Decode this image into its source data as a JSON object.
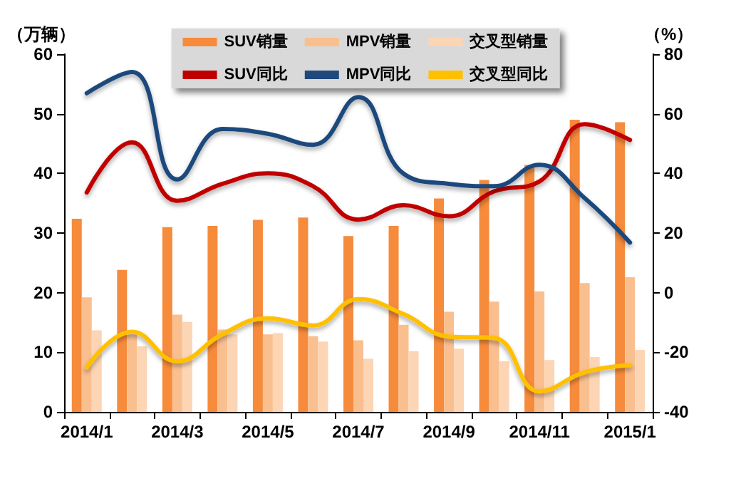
{
  "chart_data": {
    "type": "bar",
    "ylabel": "（万辆）",
    "y2label": "（%）",
    "categories": [
      "2014/1",
      null,
      "2014/3",
      null,
      "2014/5",
      null,
      "2014/7",
      null,
      "2014/9",
      null,
      "2014/11",
      null,
      "2015/1"
    ],
    "series": [
      {
        "name": "SUV销量",
        "color": "#f68b3c",
        "values": [
          32.4,
          23.8,
          31.0,
          31.2,
          32.2,
          32.6,
          29.5,
          31.2,
          35.8,
          38.9,
          41.4,
          49.0,
          48.6
        ]
      },
      {
        "name": "MPV销量",
        "color": "#fabf8f",
        "values": [
          19.2,
          13.0,
          16.3,
          13.8,
          13.0,
          12.7,
          12.0,
          14.6,
          16.8,
          18.5,
          20.2,
          21.6,
          22.6
        ]
      },
      {
        "name": "交叉型销量",
        "color": "#fcd5b5",
        "values": [
          13.7,
          11.0,
          15.1,
          13.0,
          13.2,
          11.8,
          8.9,
          10.2,
          10.6,
          8.5,
          8.7,
          9.2,
          10.4
        ]
      },
      {
        "name": "SUV同比",
        "type": "line",
        "axis": "y2",
        "color": "#c00000",
        "values": [
          33.6,
          50.4,
          30.8,
          36.5,
          40.0,
          35.7,
          24.5,
          29.3,
          25.6,
          34.0,
          37.3,
          56.5,
          51.2
        ]
      },
      {
        "name": "MPV同比",
        "type": "line",
        "axis": "y2",
        "color": "#1f497d",
        "values": [
          66.9,
          74.0,
          38.0,
          54.9,
          53.3,
          49.6,
          65.6,
          39.9,
          36.5,
          35.7,
          42.9,
          31.7,
          16.8
        ]
      },
      {
        "name": "交叉型同比",
        "type": "line",
        "axis": "y2",
        "color": "#ffc000",
        "values": [
          -25.1,
          -13.1,
          -23.0,
          -13.9,
          -8.6,
          -11.0,
          -2.2,
          -7.2,
          -14.7,
          -15.2,
          -33.1,
          -26.7,
          -24.3
        ]
      }
    ],
    "ylim": [
      0,
      60
    ],
    "yticks": [
      0,
      10,
      20,
      30,
      40,
      50,
      60
    ],
    "y2lim": [
      -40,
      80
    ],
    "y2ticks": [
      -40,
      -20,
      0,
      20,
      40,
      60,
      80
    ],
    "legend": "top",
    "grid": false,
    "marker": "none",
    "line_style": "solid"
  }
}
